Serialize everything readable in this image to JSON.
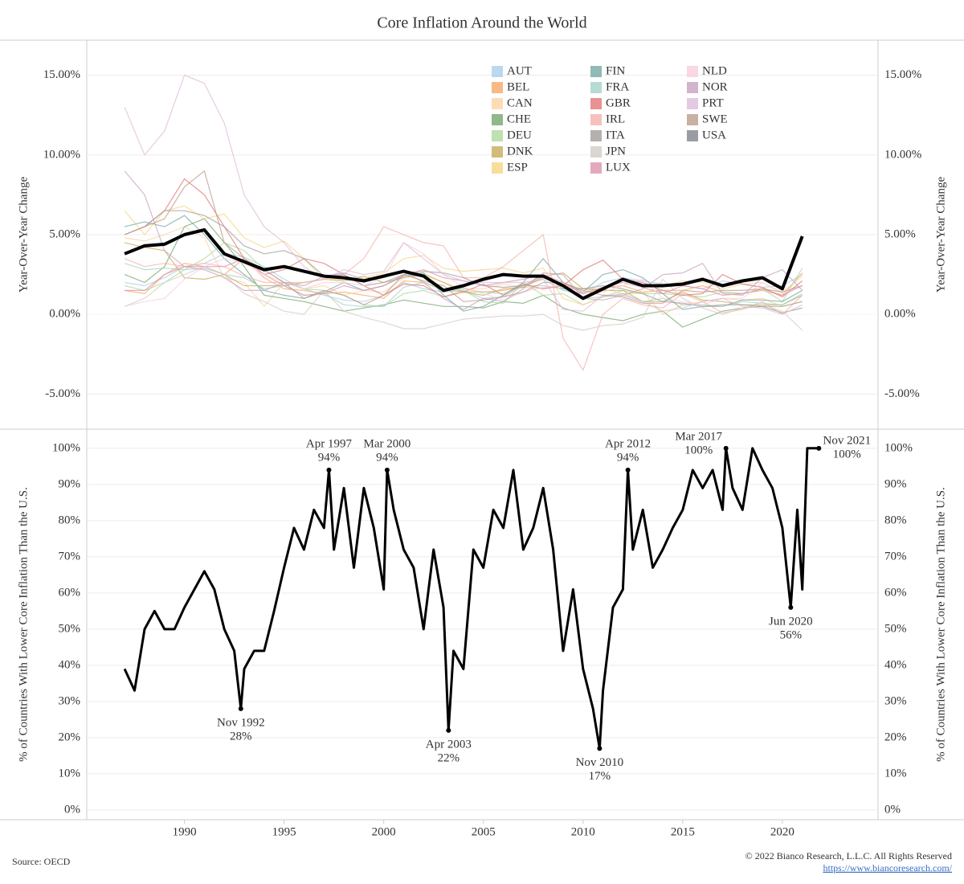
{
  "title": "Core Inflation Around the World",
  "source": "Source: OECD",
  "copyright": "© 2022 Bianco Research, L.L.C. All Rights Reserved",
  "url": "https://www.biancoresearch.com/",
  "chart_data": [
    {
      "type": "line",
      "y_axis_label": "Year-Over-Year Change",
      "xlim": [
        1985.1,
        2024.8
      ],
      "ylim": [
        -7.2,
        17.2
      ],
      "yticks": [
        {
          "value": -5,
          "label": "-5.00%"
        },
        {
          "value": 0,
          "label": "0.00%"
        },
        {
          "value": 5,
          "label": "5.00%"
        },
        {
          "value": 10,
          "label": "10.00%"
        },
        {
          "value": 15,
          "label": "15.00%"
        }
      ],
      "grid": true,
      "legend": "top-center",
      "x": [
        1987,
        1988,
        1989,
        1990,
        1991,
        1992,
        1993,
        1994,
        1995,
        1996,
        1997,
        1998,
        1999,
        2000,
        2001,
        2002,
        2003,
        2004,
        2005,
        2006,
        2007,
        2008,
        2009,
        2010,
        2011,
        2012,
        2013,
        2014,
        2015,
        2016,
        2017,
        2018,
        2019,
        2020,
        2021
      ],
      "series": [
        {
          "name": "AUT",
          "color": "#a9cfe8",
          "values": [
            2.0,
            1.8,
            2.3,
            3.0,
            3.2,
            3.8,
            3.6,
            3.0,
            2.2,
            1.6,
            1.2,
            0.9,
            0.8,
            1.2,
            2.0,
            1.6,
            1.4,
            1.5,
            1.0,
            1.1,
            1.8,
            2.2,
            1.5,
            1.3,
            2.0,
            2.3,
            2.1,
            1.9,
            1.8,
            1.6,
            2.1,
            1.9,
            1.7,
            1.8,
            2.5
          ]
        },
        {
          "name": "BEL",
          "color": "#f5a868",
          "values": [
            1.5,
            1.3,
            2.5,
            3.2,
            3.0,
            2.5,
            3.5,
            2.3,
            1.6,
            1.5,
            1.3,
            1.4,
            1.2,
            1.0,
            2.1,
            2.0,
            1.6,
            1.4,
            1.4,
            1.5,
            1.7,
            2.3,
            1.9,
            1.3,
            1.7,
            1.8,
            1.4,
            1.5,
            1.5,
            1.8,
            1.4,
            1.3,
            1.5,
            1.2,
            2.6
          ]
        },
        {
          "name": "CAN",
          "color": "#fbd3a4",
          "values": [
            4.8,
            4.6,
            5.0,
            5.5,
            4.8,
            2.3,
            2.0,
            0.5,
            2.0,
            1.6,
            1.8,
            1.2,
            1.5,
            1.4,
            2.3,
            2.6,
            2.0,
            1.6,
            1.6,
            1.9,
            1.7,
            1.6,
            1.9,
            1.6,
            1.6,
            1.3,
            1.3,
            1.8,
            2.1,
            2.0,
            1.6,
            1.9,
            2.0,
            1.4,
            2.4
          ]
        },
        {
          "name": "CHE",
          "color": "#74a86c",
          "values": [
            2.5,
            2.0,
            3.0,
            5.5,
            6.0,
            4.5,
            3.0,
            1.2,
            1.0,
            0.8,
            0.5,
            0.2,
            0.4,
            0.6,
            0.9,
            0.7,
            0.5,
            0.5,
            0.4,
            0.8,
            0.7,
            1.2,
            0.4,
            0.0,
            -0.2,
            -0.4,
            0.0,
            0.2,
            -0.8,
            -0.3,
            0.2,
            0.4,
            0.5,
            0.1,
            0.4
          ]
        },
        {
          "name": "DEU",
          "color": "#acd99c",
          "values": [
            1.8,
            1.5,
            2.0,
            2.8,
            3.5,
            4.5,
            4.0,
            2.8,
            2.0,
            1.6,
            1.5,
            1.2,
            0.6,
            0.5,
            1.3,
            1.5,
            1.1,
            1.5,
            0.8,
            0.7,
            2.0,
            1.2,
            1.3,
            0.6,
            1.1,
            1.5,
            1.3,
            1.3,
            1.2,
            1.1,
            1.4,
            1.3,
            1.6,
            0.8,
            2.9
          ]
        },
        {
          "name": "DNK",
          "color": "#c4ac5a",
          "values": [
            4.5,
            4.2,
            4.0,
            2.3,
            2.2,
            2.5,
            1.8,
            1.8,
            1.8,
            2.0,
            2.2,
            2.1,
            2.4,
            2.0,
            2.3,
            2.5,
            2.0,
            1.4,
            1.2,
            1.6,
            1.7,
            2.4,
            2.6,
            1.6,
            1.5,
            1.5,
            0.8,
            0.8,
            1.4,
            0.9,
            0.8,
            0.6,
            0.6,
            0.6,
            1.2
          ]
        },
        {
          "name": "ESP",
          "color": "#f5d681",
          "values": [
            6.5,
            5.0,
            6.5,
            6.8,
            6.0,
            6.3,
            4.8,
            4.2,
            4.6,
            3.5,
            2.2,
            2.2,
            2.3,
            2.6,
            3.5,
            3.7,
            2.9,
            2.7,
            2.8,
            2.9,
            2.6,
            2.9,
            1.0,
            0.6,
            1.1,
            1.3,
            1.4,
            0.0,
            0.6,
            0.8,
            1.0,
            0.9,
            1.0,
            0.5,
            0.8
          ]
        },
        {
          "name": "FIN",
          "color": "#76a8a3",
          "values": [
            5.5,
            5.8,
            5.5,
            6.2,
            5.0,
            3.5,
            2.5,
            1.5,
            1.2,
            1.0,
            1.4,
            2.0,
            1.5,
            1.8,
            2.4,
            2.6,
            1.2,
            0.2,
            0.5,
            1.2,
            2.0,
            3.5,
            2.0,
            1.4,
            2.5,
            2.8,
            2.3,
            1.3,
            0.3,
            0.5,
            0.5,
            0.9,
            0.9,
            0.8,
            1.5
          ]
        },
        {
          "name": "FRA",
          "color": "#a3d2c8",
          "values": [
            3.2,
            2.8,
            2.9,
            2.8,
            2.9,
            2.5,
            2.3,
            1.6,
            1.8,
            1.2,
            1.3,
            0.6,
            0.5,
            0.5,
            1.7,
            2.0,
            1.5,
            1.6,
            1.4,
            1.3,
            1.8,
            1.8,
            1.6,
            1.0,
            1.1,
            1.3,
            0.8,
            1.0,
            0.6,
            0.6,
            0.5,
            0.8,
            0.7,
            0.6,
            1.3
          ]
        },
        {
          "name": "GBR",
          "color": "#e57676",
          "values": [
            5.0,
            5.5,
            6.5,
            8.5,
            7.5,
            5.5,
            3.5,
            2.5,
            2.8,
            3.5,
            3.2,
            2.5,
            1.8,
            1.2,
            1.9,
            1.8,
            1.1,
            1.4,
            1.9,
            1.2,
            1.9,
            1.6,
            1.8,
            2.8,
            3.4,
            2.2,
            2.0,
            1.5,
            1.2,
            1.3,
            2.5,
            1.9,
            1.7,
            1.1,
            2.1
          ]
        },
        {
          "name": "IRL",
          "color": "#f6b0ab",
          "values": [
            3.5,
            3.0,
            3.2,
            3.0,
            3.2,
            3.0,
            2.4,
            2.0,
            2.0,
            2.0,
            2.2,
            2.5,
            3.5,
            5.5,
            5.0,
            4.5,
            4.3,
            2.3,
            2.3,
            3.0,
            4.0,
            5.0,
            -1.5,
            -3.5,
            0.0,
            1.0,
            0.6,
            0.4,
            1.3,
            0.8,
            0.1,
            0.3,
            0.8,
            0.0,
            1.2
          ]
        },
        {
          "name": "ITA",
          "color": "#a39c9a",
          "values": [
            5.0,
            5.5,
            6.5,
            6.5,
            6.2,
            5.5,
            4.3,
            3.8,
            4.0,
            3.5,
            2.4,
            2.5,
            1.8,
            2.0,
            2.5,
            2.7,
            2.6,
            2.3,
            1.8,
            1.7,
            1.8,
            2.5,
            1.6,
            1.6,
            1.8,
            1.6,
            1.3,
            0.8,
            0.7,
            0.5,
            0.6,
            0.6,
            0.5,
            0.5,
            0.8
          ]
        },
        {
          "name": "JPN",
          "color": "#d2ccc6",
          "values": [
            0.5,
            1.0,
            2.0,
            2.5,
            3.0,
            2.5,
            1.3,
            0.8,
            0.2,
            0.0,
            1.5,
            0.2,
            -0.2,
            -0.5,
            -0.9,
            -0.9,
            -0.6,
            -0.3,
            -0.2,
            -0.1,
            -0.1,
            0.0,
            -0.7,
            -1.0,
            -0.7,
            -0.6,
            -0.2,
            2.2,
            1.0,
            0.4,
            0.0,
            0.4,
            0.6,
            0.2,
            -1.0
          ]
        },
        {
          "name": "LUX",
          "color": "#dc93ad",
          "values": [
            1.5,
            1.5,
            2.5,
            3.0,
            3.0,
            3.0,
            3.5,
            2.5,
            1.8,
            1.2,
            1.3,
            1.8,
            1.5,
            1.8,
            2.5,
            2.8,
            2.3,
            2.1,
            1.8,
            2.0,
            2.2,
            2.5,
            2.0,
            1.3,
            1.7,
            2.0,
            1.7,
            1.3,
            1.8,
            1.6,
            1.2,
            1.3,
            1.6,
            1.2,
            1.8
          ]
        },
        {
          "name": "NLD",
          "color": "#f8cddd",
          "values": [
            0.5,
            0.8,
            1.0,
            2.2,
            3.0,
            3.5,
            3.2,
            2.5,
            2.0,
            1.6,
            2.0,
            2.0,
            1.8,
            2.3,
            4.5,
            3.8,
            2.5,
            1.7,
            1.3,
            0.9,
            1.4,
            1.7,
            1.8,
            1.4,
            1.4,
            1.8,
            2.2,
            1.0,
            0.8,
            0.6,
            1.0,
            1.0,
            2.0,
            1.3,
            1.8
          ]
        },
        {
          "name": "NOR",
          "color": "#c8a1c0",
          "values": [
            9.0,
            7.5,
            4.0,
            3.0,
            2.8,
            2.3,
            1.5,
            1.5,
            2.0,
            1.8,
            2.4,
            2.6,
            2.2,
            2.3,
            2.7,
            2.0,
            1.0,
            0.3,
            1.0,
            0.8,
            1.6,
            2.6,
            2.5,
            1.0,
            0.9,
            1.2,
            1.6,
            2.5,
            2.6,
            3.2,
            1.3,
            1.2,
            2.3,
            2.8,
            1.5
          ]
        },
        {
          "name": "PRT",
          "color": "#dfbadb",
          "values": [
            13.0,
            10.0,
            11.5,
            15.0,
            14.5,
            12.0,
            7.5,
            5.5,
            4.5,
            3.0,
            2.2,
            2.8,
            2.5,
            2.7,
            4.5,
            3.5,
            2.5,
            2.1,
            2.0,
            2.0,
            2.0,
            2.2,
            0.3,
            0.2,
            1.2,
            1.2,
            0.8,
            0.2,
            0.4,
            0.8,
            1.0,
            0.5,
            0.4,
            0.0,
            0.6
          ]
        },
        {
          "name": "SWE",
          "color": "#bc9c8b",
          "values": [
            5.0,
            5.5,
            6.0,
            8.0,
            9.0,
            4.5,
            3.5,
            2.8,
            2.0,
            1.0,
            1.5,
            1.2,
            0.6,
            1.2,
            2.5,
            2.1,
            1.8,
            0.8,
            0.9,
            1.1,
            1.4,
            2.0,
            2.0,
            1.5,
            1.2,
            1.1,
            0.7,
            0.7,
            1.5,
            1.4,
            1.5,
            1.5,
            1.6,
            1.4,
            1.8
          ]
        },
        {
          "name": "USA",
          "color": "#80858c",
          "emphasis_color": "#000000",
          "values": [
            3.8,
            4.3,
            4.4,
            5.0,
            5.3,
            3.8,
            3.3,
            2.8,
            3.0,
            2.7,
            2.4,
            2.3,
            2.1,
            2.4,
            2.7,
            2.4,
            1.5,
            1.8,
            2.2,
            2.5,
            2.4,
            2.4,
            1.8,
            1.0,
            1.6,
            2.2,
            1.8,
            1.8,
            1.9,
            2.2,
            1.8,
            2.1,
            2.3,
            1.6,
            4.9
          ]
        }
      ]
    },
    {
      "type": "line",
      "y_axis_label": "% of Countries With Lower Core Inflation Than the U.S.",
      "xlim": [
        1985.1,
        2024.8
      ],
      "xticks": [
        1990,
        1995,
        2000,
        2005,
        2010,
        2015,
        2020
      ],
      "ylim": [
        -2.7,
        105.3
      ],
      "yticks": [
        {
          "value": 0,
          "label": "0%"
        },
        {
          "value": 10,
          "label": "10%"
        },
        {
          "value": 20,
          "label": "20%"
        },
        {
          "value": 30,
          "label": "30%"
        },
        {
          "value": 40,
          "label": "40%"
        },
        {
          "value": 50,
          "label": "50%"
        },
        {
          "value": 60,
          "label": "60%"
        },
        {
          "value": 70,
          "label": "70%"
        },
        {
          "value": 80,
          "label": "80%"
        },
        {
          "value": 90,
          "label": "90%"
        },
        {
          "value": 100,
          "label": "100%"
        }
      ],
      "grid": true,
      "color": "#000000",
      "x": [
        1987,
        1987.5,
        1988,
        1988.5,
        1989,
        1989.5,
        1990,
        1990.5,
        1991,
        1991.5,
        1992,
        1992.5,
        1992.83,
        1993,
        1993.5,
        1994,
        1994.5,
        1995,
        1995.5,
        1996,
        1996.5,
        1997,
        1997.25,
        1997.5,
        1998,
        1998.5,
        1999,
        1999.5,
        2000,
        2000.17,
        2000.5,
        2001,
        2001.5,
        2002,
        2002.5,
        2003,
        2003.25,
        2003.5,
        2004,
        2004.5,
        2005,
        2005.5,
        2006,
        2006.5,
        2007,
        2007.5,
        2008,
        2008.5,
        2009,
        2009.5,
        2010,
        2010.5,
        2010.83,
        2011,
        2011.5,
        2012,
        2012.25,
        2012.5,
        2013,
        2013.5,
        2014,
        2014.5,
        2015,
        2015.5,
        2016,
        2016.5,
        2017,
        2017.17,
        2017.5,
        2018,
        2018.5,
        2019,
        2019.5,
        2020,
        2020.42,
        2020.75,
        2021,
        2021.25,
        2021.83
      ],
      "values": [
        39,
        33,
        50,
        55,
        50,
        50,
        56,
        61,
        66,
        61,
        50,
        44,
        28,
        39,
        44,
        44,
        55,
        67,
        78,
        72,
        83,
        78,
        94,
        72,
        89,
        67,
        89,
        78,
        61,
        94,
        83,
        72,
        67,
        50,
        72,
        56,
        22,
        44,
        39,
        72,
        67,
        83,
        78,
        94,
        72,
        78,
        89,
        72,
        44,
        61,
        39,
        28,
        17,
        33,
        56,
        61,
        94,
        72,
        83,
        67,
        72,
        78,
        83,
        94,
        89,
        94,
        83,
        100,
        89,
        83,
        100,
        94,
        89,
        78,
        56,
        83,
        61,
        100,
        100
      ],
      "annotations": [
        {
          "date": "Nov 1992",
          "x": 1992.83,
          "value": 28,
          "value_label": "28%",
          "position": "below"
        },
        {
          "date": "Apr 1997",
          "x": 1997.25,
          "value": 94,
          "value_label": "94%",
          "position": "above"
        },
        {
          "date": "Mar 2000",
          "x": 2000.17,
          "value": 94,
          "value_label": "94%",
          "position": "above"
        },
        {
          "date": "Apr 2003",
          "x": 2003.25,
          "value": 22,
          "value_label": "22%",
          "position": "below"
        },
        {
          "date": "Nov 2010",
          "x": 2010.83,
          "value": 17,
          "value_label": "17%",
          "position": "below"
        },
        {
          "date": "Apr 2012",
          "x": 2012.25,
          "value": 94,
          "value_label": "94%",
          "position": "above"
        },
        {
          "date": "Mar 2017",
          "x": 2017.17,
          "value": 100,
          "value_label": "100%",
          "position": "above-left"
        },
        {
          "date": "Jun 2020",
          "x": 2020.42,
          "value": 56,
          "value_label": "56%",
          "position": "below"
        },
        {
          "date": "Nov 2021",
          "x": 2021.83,
          "value": 100,
          "value_label": "100%",
          "position": "right"
        }
      ]
    }
  ]
}
